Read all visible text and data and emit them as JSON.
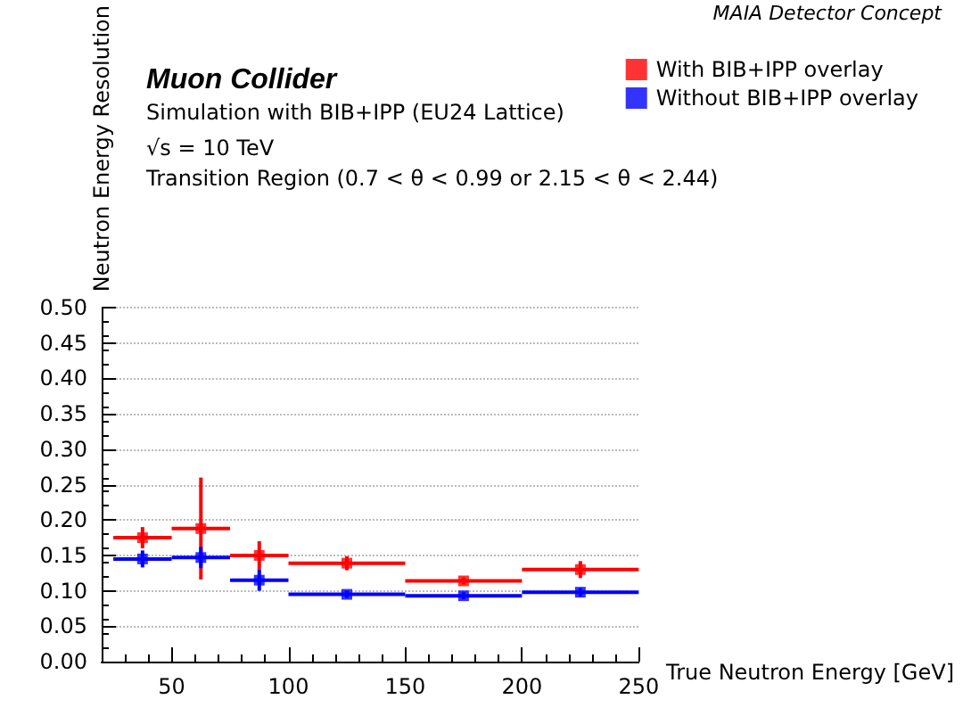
{
  "chart_data": {
    "type": "scatter",
    "xlabel": "True Neutron Energy [GeV]",
    "ylabel": "Neutron Energy Resolution",
    "annotations": [
      "MAIA Detector Concept",
      "Muon Collider",
      "Simulation with BIB+IPP (EU24 Lattice)",
      "√s = 10 TeV",
      "Transition Region (0.7 < θ < 0.99 or 2.15 < θ < 2.44)"
    ],
    "x": [
      37.5,
      62.5,
      87.5,
      125,
      175,
      225
    ],
    "series": [
      {
        "name": "With BIB+IPP overlay",
        "color": "#ff0000",
        "values": [
          0.175,
          0.188,
          0.15,
          0.139,
          0.114,
          0.13
        ],
        "errors": [
          0.015,
          0.072,
          0.02,
          0.01,
          0.005,
          0.012
        ],
        "xerrors": [
          12.5,
          12.5,
          12.5,
          25,
          25,
          25
        ]
      },
      {
        "name": "Without BIB+IPP overlay",
        "color": "#0000ff",
        "values": [
          0.145,
          0.147,
          0.115,
          0.095,
          0.093,
          0.098
        ],
        "errors": [
          0.012,
          0.015,
          0.015,
          0.005,
          0.005,
          0.006
        ],
        "xerrors": [
          12.5,
          12.5,
          12.5,
          25,
          25,
          25
        ]
      }
    ],
    "xlim": [
      20,
      250
    ],
    "xticks": [
      50,
      100,
      150,
      200,
      250
    ],
    "ylim": [
      0,
      0.5
    ],
    "yticks": [
      {
        "value": 0,
        "label": "0.00"
      },
      {
        "value": 0.05,
        "label": "0.05"
      },
      {
        "value": 0.1,
        "label": "0.10"
      },
      {
        "value": 0.15,
        "label": "0.15"
      },
      {
        "value": 0.2,
        "label": "0.20"
      },
      {
        "value": 0.25,
        "label": "0.25"
      },
      {
        "value": 0.3,
        "label": "0.30"
      },
      {
        "value": 0.35,
        "label": "0.35"
      },
      {
        "value": 0.4,
        "label": "0.40"
      },
      {
        "value": 0.45,
        "label": "0.45"
      },
      {
        "value": 0.5,
        "label": "0.50"
      }
    ],
    "grid": "y",
    "legend": "top right",
    "marker": "square"
  }
}
